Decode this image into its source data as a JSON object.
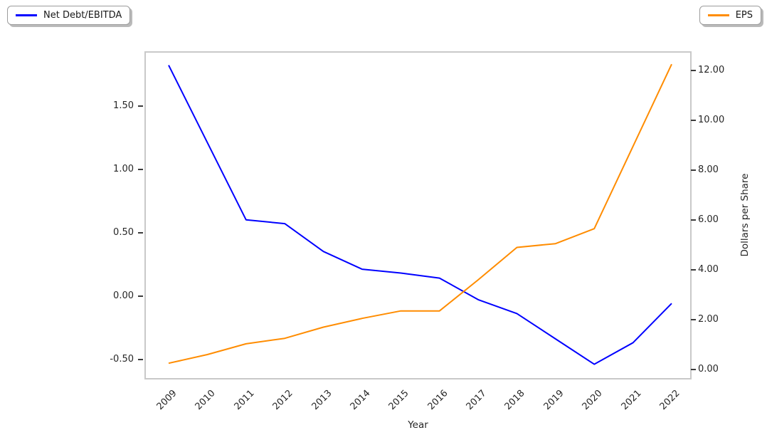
{
  "chart_data": {
    "type": "line",
    "title": "",
    "xlabel": "Year",
    "ylabel_right": "Dollars per Share",
    "grid": false,
    "legend_position": "two boxes outside axes: top-left and top-right of figure",
    "categories": [
      "2009",
      "2010",
      "2011",
      "2012",
      "2013",
      "2014",
      "2015",
      "2016",
      "2017",
      "2018",
      "2019",
      "2020",
      "2021",
      "2022"
    ],
    "series": [
      {
        "name": "Net Debt/EBITDA",
        "axis": "left",
        "color": "#0000ff",
        "values": [
          1.82,
          1.21,
          0.6,
          0.57,
          0.35,
          0.21,
          0.18,
          0.14,
          -0.03,
          -0.14,
          -0.34,
          -0.54,
          -0.37,
          -0.06
        ]
      },
      {
        "name": "EPS",
        "axis": "right",
        "color": "#ff8c00",
        "values": [
          0.25,
          0.6,
          1.03,
          1.25,
          1.7,
          2.05,
          2.35,
          2.35,
          3.6,
          4.9,
          5.05,
          5.65,
          8.95,
          12.25
        ]
      }
    ],
    "left_axis": {
      "tick_labels": [
        "1.50",
        "1.00",
        "0.50",
        "0.00",
        "-0.50"
      ],
      "tick_values": [
        1.5,
        1.0,
        0.5,
        0.0,
        -0.5
      ],
      "ylim": [
        -0.66,
        1.93
      ]
    },
    "right_axis": {
      "tick_labels": [
        "12.00",
        "10.00",
        "8.00",
        "6.00",
        "4.00",
        "2.00",
        "0.00"
      ],
      "tick_values": [
        12,
        10,
        8,
        6,
        4,
        2,
        0
      ],
      "ylim": [
        -0.4,
        12.77
      ]
    }
  }
}
